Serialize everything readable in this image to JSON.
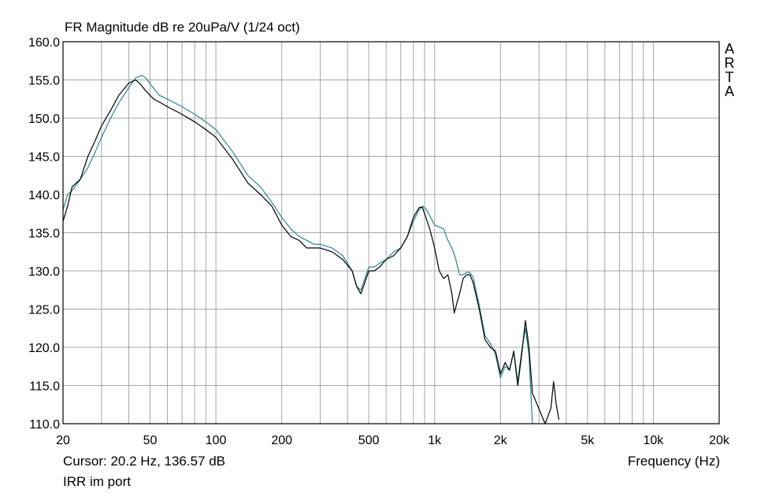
{
  "window": {
    "title": "FR Magnitude dB re 20uPa/V (1/24 oct)",
    "brand": [
      "A",
      "R",
      "T",
      "A"
    ],
    "cursor_readout": "Cursor: 20.2 Hz, 136.57 dB",
    "note": "IRR im port"
  },
  "chart_data": {
    "type": "line",
    "title": "FR Magnitude dB re 20uPa/V (1/24 oct)",
    "xlabel": "Frequency (Hz)",
    "ylabel": "",
    "x_scale": "log",
    "xlim": [
      20,
      20000
    ],
    "ylim": [
      110,
      160
    ],
    "grid": true,
    "x_ticks": [
      20,
      50,
      100,
      200,
      500,
      1000,
      2000,
      5000,
      10000,
      20000
    ],
    "x_tick_labels": [
      "20",
      "50",
      "100",
      "200",
      "500",
      "1k",
      "2k",
      "5k",
      "10k",
      "20k"
    ],
    "y_ticks": [
      110,
      115,
      120,
      125,
      130,
      135,
      140,
      145,
      150,
      155,
      160
    ],
    "y_tick_labels": [
      "110.0",
      "115.0",
      "120.0",
      "125.0",
      "130.0",
      "135.0",
      "140.0",
      "145.0",
      "150.0",
      "155.0",
      "160.0"
    ],
    "series": [
      {
        "color": "#000000",
        "x": [
          20,
          21,
          22,
          24,
          26,
          28,
          30,
          33,
          36,
          40,
          43,
          45,
          48,
          52,
          56,
          60,
          70,
          80,
          90,
          100,
          120,
          140,
          160,
          180,
          200,
          220,
          240,
          260,
          280,
          300,
          340,
          380,
          420,
          440,
          460,
          480,
          500,
          530,
          560,
          600,
          650,
          700,
          750,
          800,
          850,
          880,
          900,
          950,
          1000,
          1050,
          1100,
          1150,
          1200,
          1230,
          1270,
          1300,
          1350,
          1400,
          1450,
          1500,
          1600,
          1700,
          1800,
          1900,
          2000,
          2100,
          2200,
          2300,
          2400,
          2500,
          2600,
          2700,
          2800,
          3200,
          3400,
          3500,
          3600,
          3700
        ],
        "y": [
          136.5,
          138.5,
          141,
          142,
          145,
          147,
          149,
          151,
          153,
          154.6,
          155,
          154.5,
          153.5,
          152.5,
          152,
          151.5,
          150.5,
          149.5,
          148.5,
          147.5,
          144.5,
          141.5,
          140,
          138.5,
          136,
          134.5,
          134,
          133,
          133,
          133,
          132.5,
          131.5,
          130,
          128,
          127,
          128.5,
          130,
          130,
          130.5,
          131.5,
          132,
          133,
          134.5,
          137,
          138.3,
          138.3,
          137.5,
          135.5,
          133,
          130,
          129,
          129.5,
          127,
          124.5,
          126,
          127,
          129,
          129.5,
          129.5,
          128.5,
          125,
          121,
          120,
          119.5,
          116.5,
          118,
          117,
          119.5,
          115,
          119,
          123.5,
          120,
          114,
          110,
          112,
          115.5,
          112.5,
          110.5
        ]
      },
      {
        "color": "#1f8a96",
        "x": [
          20,
          21,
          22,
          24,
          26,
          28,
          30,
          33,
          36,
          40,
          43,
          46,
          48,
          50,
          55,
          60,
          70,
          80,
          90,
          100,
          120,
          140,
          160,
          180,
          200,
          220,
          240,
          260,
          280,
          300,
          340,
          380,
          420,
          440,
          460,
          480,
          500,
          530,
          560,
          600,
          650,
          700,
          750,
          800,
          850,
          880,
          920,
          960,
          1000,
          1100,
          1150,
          1200,
          1250,
          1300,
          1350,
          1400,
          1450,
          1500,
          1600,
          1700,
          1800,
          1900,
          2000,
          2100,
          2200,
          2300,
          2400,
          2500,
          2600,
          2700,
          2800
        ],
        "y": [
          138,
          140,
          140.5,
          142,
          143.5,
          145.5,
          147.5,
          150,
          152,
          154,
          155.3,
          155.6,
          155.2,
          154.5,
          153,
          152.5,
          151.5,
          150.5,
          149.5,
          148.5,
          145.5,
          142.5,
          141,
          139,
          137,
          135.5,
          134.5,
          134,
          133.5,
          133.5,
          133,
          132,
          130,
          128,
          127.5,
          129,
          130.5,
          130.5,
          131,
          131.5,
          132.5,
          133,
          134.5,
          136.5,
          138,
          138.5,
          138,
          137,
          136,
          135.5,
          134,
          133,
          131.5,
          129.5,
          129.5,
          129.8,
          129.8,
          129.2,
          125.5,
          121.5,
          120.5,
          119,
          116,
          117.5,
          117,
          119.5,
          115.5,
          119.5,
          122.5,
          119,
          110
        ]
      }
    ]
  }
}
